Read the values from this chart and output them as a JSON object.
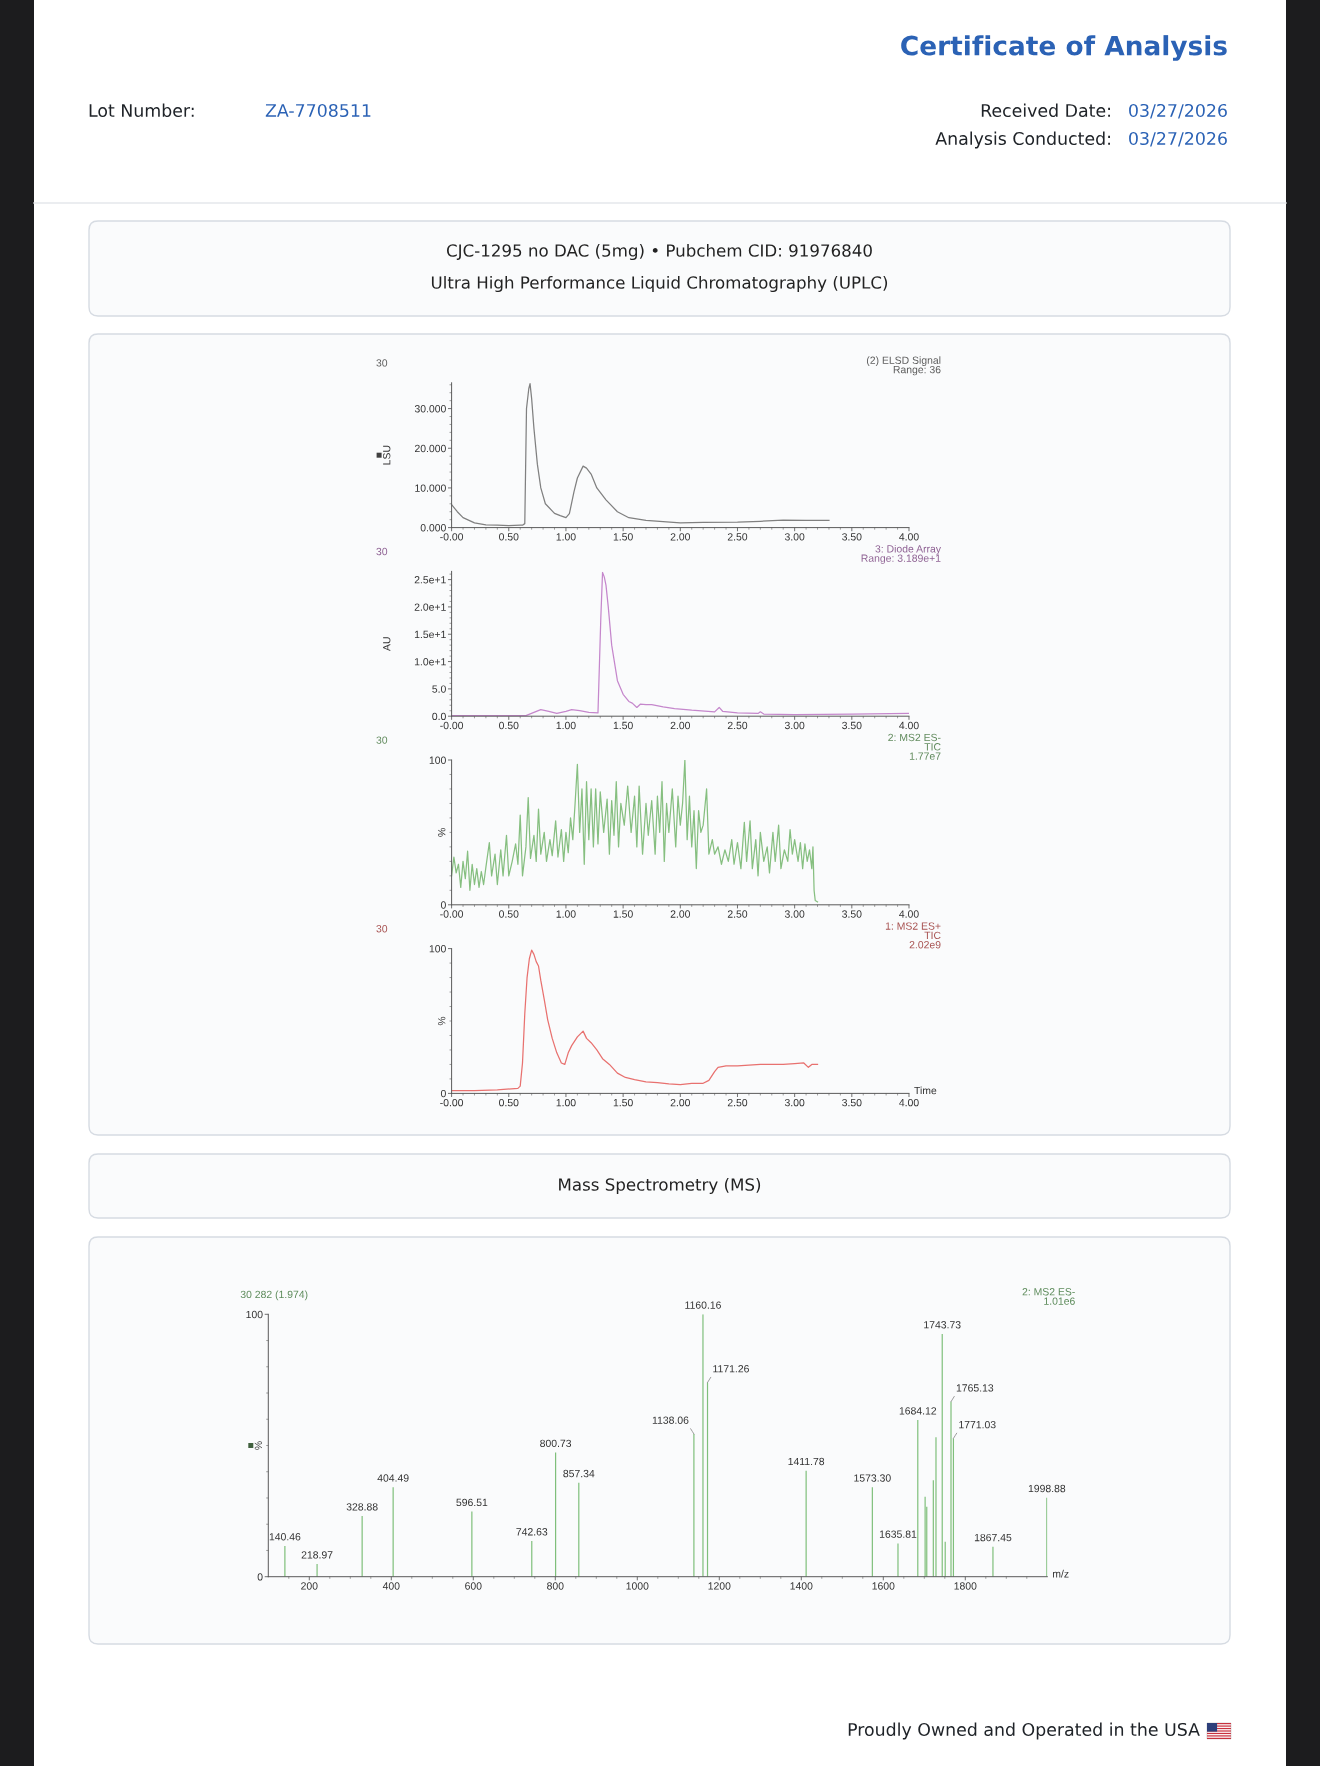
{
  "chart_data": [
    {
      "type": "other",
      "title": "Certificate of Analysis",
      "annotations": [
        "Lot Number:",
        "ZA-7708511",
        "Received Date:",
        "03/27/2026",
        "Analysis Conducted:",
        "03/27/2026",
        "Proudly Owned and Operated in the USA"
      ]
    },
    {
      "type": "line",
      "title": "CJC-1295 no DAC (5mg) • Pubchem CID: 91976840",
      "subtitle": "Ultra High Performance Liquid Chromatography (UPLC)",
      "ylabel": "LSU",
      "annotations": [
        "30",
        "(2) ELSD Signal\nRange: 36"
      ],
      "color": "#808080",
      "x": [
        0,
        0.05,
        0.1,
        0.2,
        0.3,
        0.4,
        0.5,
        0.6,
        0.62,
        0.64,
        0.655,
        0.675,
        0.686,
        0.7,
        0.72,
        0.75,
        0.78,
        0.82,
        0.9,
        0.95,
        1,
        1.03,
        1.07,
        1.1,
        1.15,
        1.18,
        1.22,
        1.27,
        1.35,
        1.45,
        1.55,
        1.7,
        1.85,
        2,
        2.2,
        2.5,
        2.7,
        2.9,
        3.1,
        3.3
      ],
      "values": [
        5.8,
        4,
        2.5,
        1.2,
        0.7,
        0.6,
        0.5,
        0.6,
        0.6,
        1,
        30,
        35,
        36.3,
        32.5,
        25,
        16,
        10,
        6,
        3.6,
        3,
        2.5,
        3.5,
        9,
        12.5,
        15.5,
        15,
        13.5,
        10,
        7,
        4,
        2.5,
        1.8,
        1.5,
        1.2,
        1.3,
        1.4,
        1.6,
        1.9,
        1.8,
        1.8
      ],
      "xlim": [
        0,
        4
      ],
      "ylim": [
        0,
        36.5
      ],
      "xticks": [
        {
          "value": 0,
          "label": "-0.00"
        },
        {
          "value": 0.1,
          "label": null
        },
        {
          "value": 0.2,
          "label": null
        },
        {
          "value": 0.3,
          "label": null
        },
        {
          "value": 0.4,
          "label": null
        },
        {
          "value": 0.5,
          "label": "0.50"
        },
        {
          "value": 0.6,
          "label": null
        },
        {
          "value": 0.7,
          "label": null
        },
        {
          "value": 0.8,
          "label": null
        },
        {
          "value": 0.9,
          "label": null
        },
        {
          "value": 1,
          "label": "1.00"
        },
        {
          "value": 1.1,
          "label": null
        },
        {
          "value": 1.2,
          "label": null
        },
        {
          "value": 1.3,
          "label": null
        },
        {
          "value": 1.4,
          "label": null
        },
        {
          "value": 1.5,
          "label": "1.50"
        },
        {
          "value": 1.6,
          "label": null
        },
        {
          "value": 1.7,
          "label": null
        },
        {
          "value": 1.8,
          "label": null
        },
        {
          "value": 1.9,
          "label": null
        },
        {
          "value": 2,
          "label": "2.00"
        },
        {
          "value": 2.1,
          "label": null
        },
        {
          "value": 2.2,
          "label": null
        },
        {
          "value": 2.3,
          "label": null
        },
        {
          "value": 2.4,
          "label": null
        },
        {
          "value": 2.5,
          "label": "2.50"
        },
        {
          "value": 2.6,
          "label": null
        },
        {
          "value": 2.7,
          "label": null
        },
        {
          "value": 2.8,
          "label": null
        },
        {
          "value": 2.9,
          "label": null
        },
        {
          "value": 3,
          "label": "3.00"
        },
        {
          "value": 3.1,
          "label": null
        },
        {
          "value": 3.2,
          "label": null
        },
        {
          "value": 3.3,
          "label": null
        },
        {
          "value": 3.4,
          "label": null
        },
        {
          "value": 3.5,
          "label": "3.50"
        },
        {
          "value": 3.6,
          "label": null
        },
        {
          "value": 3.7,
          "label": null
        },
        {
          "value": 3.8,
          "label": null
        },
        {
          "value": 3.9,
          "label": null
        },
        {
          "value": 4,
          "label": "4.00"
        }
      ],
      "yticks": [
        {
          "value": 0,
          "label": "0.000"
        },
        {
          "value": 2,
          "label": null
        },
        {
          "value": 4,
          "label": null
        },
        {
          "value": 6,
          "label": null
        },
        {
          "value": 8,
          "label": null
        },
        {
          "value": 10,
          "label": "10.000"
        },
        {
          "value": 12,
          "label": null
        },
        {
          "value": 14,
          "label": null
        },
        {
          "value": 16,
          "label": null
        },
        {
          "value": 18,
          "label": null
        },
        {
          "value": 20,
          "label": "20.000"
        },
        {
          "value": 22,
          "label": null
        },
        {
          "value": 24,
          "label": null
        },
        {
          "value": 26,
          "label": null
        },
        {
          "value": 28,
          "label": null
        },
        {
          "value": 30,
          "label": "30.000"
        },
        {
          "value": 32,
          "label": null
        },
        {
          "value": 34,
          "label": null
        },
        {
          "value": 36,
          "label": null
        }
      ]
    },
    {
      "type": "line",
      "ylabel": "AU",
      "annotations": [
        "30",
        "3: Diode Array\nRange: 3.189e+1"
      ],
      "color": "#c587cc",
      "x": [
        0,
        0.5,
        0.65,
        0.72,
        0.78,
        0.85,
        0.92,
        1,
        1.05,
        1.12,
        1.2,
        1.28,
        1.305,
        1.32,
        1.335,
        1.35,
        1.37,
        1.4,
        1.45,
        1.5,
        1.55,
        1.58,
        1.62,
        1.65,
        1.7,
        1.75,
        1.85,
        1.95,
        2.1,
        2.3,
        2.34,
        2.37,
        2.5,
        2.68,
        2.7,
        2.73,
        3,
        3.5,
        4
      ],
      "values": [
        0.1,
        0.1,
        0.1,
        0.7,
        1.2,
        0.9,
        0.5,
        0.9,
        1.2,
        1,
        0.7,
        0.6,
        18,
        26.3,
        25.5,
        24,
        20,
        13,
        6.5,
        4,
        2.7,
        2.4,
        1.6,
        2.2,
        2.1,
        2.1,
        1.7,
        1.4,
        1.1,
        0.8,
        1.6,
        0.9,
        0.6,
        0.5,
        0.8,
        0.4,
        0.3,
        0.4,
        0.5
      ],
      "xlim": [
        0,
        4
      ],
      "ylim": [
        0,
        26.5
      ],
      "xticks": [
        {
          "value": 0,
          "label": "-0.00"
        },
        {
          "value": 0.1,
          "label": null
        },
        {
          "value": 0.2,
          "label": null
        },
        {
          "value": 0.3,
          "label": null
        },
        {
          "value": 0.4,
          "label": null
        },
        {
          "value": 0.5,
          "label": "0.50"
        },
        {
          "value": 0.6,
          "label": null
        },
        {
          "value": 0.7,
          "label": null
        },
        {
          "value": 0.8,
          "label": null
        },
        {
          "value": 0.9,
          "label": null
        },
        {
          "value": 1,
          "label": "1.00"
        },
        {
          "value": 1.1,
          "label": null
        },
        {
          "value": 1.2,
          "label": null
        },
        {
          "value": 1.3,
          "label": null
        },
        {
          "value": 1.4,
          "label": null
        },
        {
          "value": 1.5,
          "label": "1.50"
        },
        {
          "value": 1.6,
          "label": null
        },
        {
          "value": 1.7,
          "label": null
        },
        {
          "value": 1.8,
          "label": null
        },
        {
          "value": 1.9,
          "label": null
        },
        {
          "value": 2,
          "label": "2.00"
        },
        {
          "value": 2.1,
          "label": null
        },
        {
          "value": 2.2,
          "label": null
        },
        {
          "value": 2.3,
          "label": null
        },
        {
          "value": 2.4,
          "label": null
        },
        {
          "value": 2.5,
          "label": "2.50"
        },
        {
          "value": 2.6,
          "label": null
        },
        {
          "value": 2.7,
          "label": null
        },
        {
          "value": 2.8,
          "label": null
        },
        {
          "value": 2.9,
          "label": null
        },
        {
          "value": 3,
          "label": "3.00"
        },
        {
          "value": 3.1,
          "label": null
        },
        {
          "value": 3.2,
          "label": null
        },
        {
          "value": 3.3,
          "label": null
        },
        {
          "value": 3.4,
          "label": null
        },
        {
          "value": 3.5,
          "label": "3.50"
        },
        {
          "value": 3.6,
          "label": null
        },
        {
          "value": 3.7,
          "label": null
        },
        {
          "value": 3.8,
          "label": null
        },
        {
          "value": 3.9,
          "label": null
        },
        {
          "value": 4,
          "label": "4.00"
        }
      ],
      "yticks": [
        {
          "value": 0,
          "label": "0.0"
        },
        {
          "value": 1,
          "label": null
        },
        {
          "value": 2,
          "label": null
        },
        {
          "value": 3,
          "label": null
        },
        {
          "value": 4,
          "label": null
        },
        {
          "value": 5,
          "label": "5.0"
        },
        {
          "value": 6,
          "label": null
        },
        {
          "value": 7,
          "label": null
        },
        {
          "value": 8,
          "label": null
        },
        {
          "value": 9,
          "label": null
        },
        {
          "value": 10,
          "label": "1.0e+1"
        },
        {
          "value": 11,
          "label": null
        },
        {
          "value": 12,
          "label": null
        },
        {
          "value": 13,
          "label": null
        },
        {
          "value": 14,
          "label": null
        },
        {
          "value": 15,
          "label": "1.5e+1"
        },
        {
          "value": 16,
          "label": null
        },
        {
          "value": 17,
          "label": null
        },
        {
          "value": 18,
          "label": null
        },
        {
          "value": 19,
          "label": null
        },
        {
          "value": 20,
          "label": "2.0e+1"
        },
        {
          "value": 21,
          "label": null
        },
        {
          "value": 22,
          "label": null
        },
        {
          "value": 23,
          "label": null
        },
        {
          "value": 24,
          "label": null
        },
        {
          "value": 25,
          "label": "2.5e+1"
        },
        {
          "value": 26,
          "label": null
        }
      ]
    },
    {
      "type": "line",
      "ylabel": "%",
      "annotations": [
        "30",
        "2: MS2 ES-\nTIC\n1.77e7"
      ],
      "color": "#86bf80",
      "x": [
        0,
        0.02,
        0.04,
        0.06,
        0.08,
        0.1,
        0.12,
        0.14,
        0.16,
        0.18,
        0.2,
        0.22,
        0.24,
        0.26,
        0.28,
        0.3,
        0.33,
        0.35,
        0.38,
        0.4,
        0.43,
        0.45,
        0.48,
        0.5,
        0.53,
        0.56,
        0.58,
        0.6,
        0.62,
        0.65,
        0.67,
        0.69,
        0.72,
        0.74,
        0.76,
        0.78,
        0.81,
        0.83,
        0.86,
        0.88,
        0.91,
        0.93,
        0.96,
        0.98,
        1,
        1.02,
        1.04,
        1.06,
        1.08,
        1.1,
        1.12,
        1.14,
        1.16,
        1.18,
        1.2,
        1.22,
        1.24,
        1.26,
        1.28,
        1.3,
        1.33,
        1.36,
        1.38,
        1.4,
        1.42,
        1.44,
        1.46,
        1.48,
        1.51,
        1.54,
        1.57,
        1.6,
        1.62,
        1.64,
        1.67,
        1.7,
        1.72,
        1.75,
        1.78,
        1.8,
        1.82,
        1.84,
        1.86,
        1.88,
        1.9,
        1.93,
        1.96,
        1.98,
        2,
        2.02,
        2.04,
        2.06,
        2.08,
        2.1,
        2.12,
        2.14,
        2.16,
        2.18,
        2.2,
        2.23,
        2.25,
        2.28,
        2.3,
        2.33,
        2.36,
        2.39,
        2.42,
        2.45,
        2.47,
        2.5,
        2.53,
        2.56,
        2.58,
        2.61,
        2.63,
        2.66,
        2.68,
        2.7,
        2.73,
        2.76,
        2.78,
        2.81,
        2.83,
        2.86,
        2.88,
        2.91,
        2.94,
        2.96,
        2.98,
        3,
        3.03,
        3.05,
        3.07,
        3.09,
        3.11,
        3.13,
        3.15,
        3.16,
        3.17,
        3.18,
        3.2
      ],
      "values": [
        20,
        33,
        22,
        28,
        12,
        30,
        18,
        37,
        10,
        28,
        14,
        25,
        12,
        23,
        14,
        26,
        43,
        20,
        35,
        14,
        38,
        20,
        48,
        20,
        30,
        42,
        28,
        62,
        20,
        40,
        74,
        32,
        48,
        30,
        66,
        35,
        50,
        30,
        45,
        34,
        58,
        33,
        52,
        30,
        50,
        36,
        60,
        45,
        70,
        97,
        50,
        80,
        28,
        85,
        45,
        80,
        40,
        80,
        42,
        78,
        50,
        73,
        35,
        72,
        48,
        85,
        40,
        70,
        55,
        82,
        50,
        75,
        40,
        82,
        35,
        70,
        48,
        72,
        35,
        75,
        50,
        85,
        30,
        70,
        50,
        80,
        40,
        75,
        55,
        70,
        100,
        45,
        75,
        40,
        65,
        25,
        65,
        50,
        55,
        80,
        35,
        45,
        35,
        40,
        28,
        38,
        30,
        45,
        28,
        43,
        25,
        57,
        30,
        58,
        25,
        45,
        20,
        50,
        30,
        40,
        22,
        50,
        30,
        55,
        25,
        38,
        30,
        52,
        35,
        45,
        30,
        43,
        25,
        42,
        30,
        38,
        25,
        40,
        10,
        3,
        2
      ],
      "xlim": [
        0,
        4
      ],
      "ylim": [
        0,
        100
      ],
      "xticks": [
        {
          "value": 0,
          "label": "-0.00"
        },
        {
          "value": 0.1,
          "label": null
        },
        {
          "value": 0.2,
          "label": null
        },
        {
          "value": 0.3,
          "label": null
        },
        {
          "value": 0.4,
          "label": null
        },
        {
          "value": 0.5,
          "label": "0.50"
        },
        {
          "value": 0.6,
          "label": null
        },
        {
          "value": 0.7,
          "label": null
        },
        {
          "value": 0.8,
          "label": null
        },
        {
          "value": 0.9,
          "label": null
        },
        {
          "value": 1,
          "label": "1.00"
        },
        {
          "value": 1.1,
          "label": null
        },
        {
          "value": 1.2,
          "label": null
        },
        {
          "value": 1.3,
          "label": null
        },
        {
          "value": 1.4,
          "label": null
        },
        {
          "value": 1.5,
          "label": "1.50"
        },
        {
          "value": 1.6,
          "label": null
        },
        {
          "value": 1.7,
          "label": null
        },
        {
          "value": 1.8,
          "label": null
        },
        {
          "value": 1.9,
          "label": null
        },
        {
          "value": 2,
          "label": "2.00"
        },
        {
          "value": 2.1,
          "label": null
        },
        {
          "value": 2.2,
          "label": null
        },
        {
          "value": 2.3,
          "label": null
        },
        {
          "value": 2.4,
          "label": null
        },
        {
          "value": 2.5,
          "label": "2.50"
        },
        {
          "value": 2.6,
          "label": null
        },
        {
          "value": 2.7,
          "label": null
        },
        {
          "value": 2.8,
          "label": null
        },
        {
          "value": 2.9,
          "label": null
        },
        {
          "value": 3,
          "label": "3.00"
        },
        {
          "value": 3.1,
          "label": null
        },
        {
          "value": 3.2,
          "label": null
        },
        {
          "value": 3.3,
          "label": null
        },
        {
          "value": 3.4,
          "label": null
        },
        {
          "value": 3.5,
          "label": "3.50"
        },
        {
          "value": 3.6,
          "label": null
        },
        {
          "value": 3.7,
          "label": null
        },
        {
          "value": 3.8,
          "label": null
        },
        {
          "value": 3.9,
          "label": null
        },
        {
          "value": 4,
          "label": "4.00"
        }
      ],
      "yticks": [
        0,
        {
          "value": 10,
          "label": null
        },
        {
          "value": 20,
          "label": null
        },
        {
          "value": 30,
          "label": null
        },
        {
          "value": 40,
          "label": null
        },
        {
          "value": 50,
          "label": null
        },
        {
          "value": 60,
          "label": null
        },
        {
          "value": 70,
          "label": null
        },
        {
          "value": 80,
          "label": null
        },
        {
          "value": 90,
          "label": null
        },
        100
      ]
    },
    {
      "type": "line",
      "ylabel": "%",
      "xlabel": "Time",
      "annotations": [
        "30",
        "1: MS2 ES+\nTIC\n2.02e9"
      ],
      "color": "#e8716f",
      "x": [
        0,
        0.2,
        0.4,
        0.58,
        0.6,
        0.62,
        0.64,
        0.66,
        0.68,
        0.7,
        0.72,
        0.74,
        0.76,
        0.78,
        0.81,
        0.84,
        0.88,
        0.92,
        0.96,
        0.99,
        1.02,
        1.05,
        1.1,
        1.15,
        1.18,
        1.22,
        1.27,
        1.32,
        1.38,
        1.45,
        1.52,
        1.6,
        1.7,
        1.8,
        1.9,
        2,
        2.1,
        2.2,
        2.25,
        2.3,
        2.33,
        2.4,
        2.5,
        2.6,
        2.7,
        2.8,
        2.9,
        3,
        3.08,
        3.12,
        3.15,
        3.2
      ],
      "values": [
        2,
        2,
        2.5,
        3.5,
        5,
        21,
        55,
        80,
        93,
        99,
        96,
        91,
        88,
        78,
        65,
        51,
        38,
        28,
        21,
        20,
        28,
        33,
        39,
        43,
        38,
        35,
        30,
        24,
        20,
        14,
        11,
        9.5,
        8,
        7.5,
        6.5,
        6,
        7,
        7,
        9,
        15,
        18,
        19,
        19,
        19.5,
        20,
        20,
        20,
        20.5,
        21,
        18,
        20,
        20
      ],
      "xlim": [
        0,
        4
      ],
      "ylim": [
        0,
        100
      ],
      "xticks": [
        {
          "value": 0,
          "label": "-0.00"
        },
        {
          "value": 0.1,
          "label": null
        },
        {
          "value": 0.2,
          "label": null
        },
        {
          "value": 0.3,
          "label": null
        },
        {
          "value": 0.4,
          "label": null
        },
        {
          "value": 0.5,
          "label": "0.50"
        },
        {
          "value": 0.6,
          "label": null
        },
        {
          "value": 0.7,
          "label": null
        },
        {
          "value": 0.8,
          "label": null
        },
        {
          "value": 0.9,
          "label": null
        },
        {
          "value": 1,
          "label": "1.00"
        },
        {
          "value": 1.1,
          "label": null
        },
        {
          "value": 1.2,
          "label": null
        },
        {
          "value": 1.3,
          "label": null
        },
        {
          "value": 1.4,
          "label": null
        },
        {
          "value": 1.5,
          "label": "1.50"
        },
        {
          "value": 1.6,
          "label": null
        },
        {
          "value": 1.7,
          "label": null
        },
        {
          "value": 1.8,
          "label": null
        },
        {
          "value": 1.9,
          "label": null
        },
        {
          "value": 2,
          "label": "2.00"
        },
        {
          "value": 2.1,
          "label": null
        },
        {
          "value": 2.2,
          "label": null
        },
        {
          "value": 2.3,
          "label": null
        },
        {
          "value": 2.4,
          "label": null
        },
        {
          "value": 2.5,
          "label": "2.50"
        },
        {
          "value": 2.6,
          "label": null
        },
        {
          "value": 2.7,
          "label": null
        },
        {
          "value": 2.8,
          "label": null
        },
        {
          "value": 2.9,
          "label": null
        },
        {
          "value": 3,
          "label": "3.00"
        },
        {
          "value": 3.1,
          "label": null
        },
        {
          "value": 3.2,
          "label": null
        },
        {
          "value": 3.3,
          "label": null
        },
        {
          "value": 3.4,
          "label": null
        },
        {
          "value": 3.5,
          "label": "3.50"
        },
        {
          "value": 3.6,
          "label": null
        },
        {
          "value": 3.7,
          "label": null
        },
        {
          "value": 3.8,
          "label": null
        },
        {
          "value": 3.9,
          "label": null
        },
        {
          "value": 4,
          "label": "4.00"
        }
      ],
      "yticks": [
        0,
        {
          "value": 10,
          "label": null
        },
        {
          "value": 20,
          "label": null
        },
        {
          "value": 30,
          "label": null
        },
        {
          "value": 40,
          "label": null
        },
        {
          "value": 50,
          "label": null
        },
        {
          "value": 60,
          "label": null
        },
        {
          "value": 70,
          "label": null
        },
        {
          "value": 80,
          "label": null
        },
        {
          "value": 90,
          "label": null
        },
        100
      ]
    },
    {
      "type": "bar",
      "title": "Mass Spectrometry (MS)",
      "ylabel": "%",
      "xlabel": "m/z",
      "color": "#7fbf7b",
      "annotations": [
        "30 282 (1.974)",
        "2: MS2 ES-\n1.01e6",
        {
          "text": "140.46",
          "x": 140.46,
          "y": 11.7
        },
        {
          "text": "218.97",
          "x": 218.97,
          "y": 4.8
        },
        {
          "text": "328.88",
          "x": 328.88,
          "y": 23.1
        },
        {
          "text": "404.49",
          "x": 404.49,
          "y": 34.1
        },
        {
          "text": "596.51",
          "x": 596.51,
          "y": 24.8
        },
        {
          "text": "742.63",
          "x": 742.63,
          "y": 13.6
        },
        {
          "text": "800.73",
          "x": 800.73,
          "y": 47.3
        },
        {
          "text": "857.34",
          "x": 857.34,
          "y": 35.8
        },
        {
          "text": "1138.06",
          "x": 1138.06,
          "y": 54.4
        },
        {
          "text": "1160.16",
          "x": 1160.16,
          "y": 100
        },
        {
          "text": "1171.26",
          "x": 1171.26,
          "y": 74
        },
        {
          "text": "1411.78",
          "x": 1411.78,
          "y": 40.4
        },
        {
          "text": "1573.30",
          "x": 1573.3,
          "y": 34.1
        },
        {
          "text": "1635.81",
          "x": 1635.81,
          "y": 12.7
        },
        {
          "text": "1684.12",
          "x": 1684.12,
          "y": 59.7
        },
        {
          "text": "1743.73",
          "x": 1743.73,
          "y": 92.5
        },
        {
          "text": "1765.13",
          "x": 1765.13,
          "y": 66.7
        },
        {
          "text": "1771.03",
          "x": 1771.03,
          "y": 52.7
        },
        {
          "text": "1867.45",
          "x": 1867.45,
          "y": 11.4
        },
        {
          "text": "1998.88",
          "x": 1998.88,
          "y": 30.1
        }
      ],
      "x": [
        140.46,
        218.97,
        328.88,
        404.49,
        596.51,
        742.63,
        800.73,
        857.34,
        1138.06,
        1160.16,
        1171.26,
        1411.78,
        1573.3,
        1635.81,
        1684.12,
        1702,
        1706,
        1722,
        1728.5,
        1743.73,
        1751,
        1765.13,
        1771.03,
        1867.45,
        1998.88
      ],
      "values": [
        11.7,
        4.8,
        23.1,
        34.1,
        24.8,
        13.6,
        47.3,
        35.8,
        54.4,
        100,
        74,
        40.4,
        34.1,
        12.7,
        59.7,
        30.5,
        26.7,
        36.8,
        53.1,
        92.5,
        13.3,
        66.7,
        52.7,
        11.4,
        30.1
      ],
      "xlim": [
        100,
        2000
      ],
      "ylim": [
        0,
        100
      ],
      "xticks": [
        {
          "value": 150,
          "label": null
        },
        200,
        {
          "value": 250,
          "label": null
        },
        {
          "value": 300,
          "label": null
        },
        {
          "value": 350,
          "label": null
        },
        400,
        {
          "value": 450,
          "label": null
        },
        {
          "value": 500,
          "label": null
        },
        {
          "value": 550,
          "label": null
        },
        600,
        {
          "value": 650,
          "label": null
        },
        {
          "value": 700,
          "label": null
        },
        {
          "value": 750,
          "label": null
        },
        800,
        {
          "value": 850,
          "label": null
        },
        {
          "value": 900,
          "label": null
        },
        {
          "value": 950,
          "label": null
        },
        1000,
        {
          "value": 1050,
          "label": null
        },
        {
          "value": 1100,
          "label": null
        },
        {
          "value": 1150,
          "label": null
        },
        1200,
        {
          "value": 1250,
          "label": null
        },
        {
          "value": 1300,
          "label": null
        },
        {
          "value": 1350,
          "label": null
        },
        1400,
        {
          "value": 1450,
          "label": null
        },
        {
          "value": 1500,
          "label": null
        },
        {
          "value": 1550,
          "label": null
        },
        1600,
        {
          "value": 1650,
          "label": null
        },
        {
          "value": 1700,
          "label": null
        },
        {
          "value": 1750,
          "label": null
        },
        1800,
        {
          "value": 1850,
          "label": null
        },
        {
          "value": 1900,
          "label": null
        },
        {
          "value": 1950,
          "label": null
        }
      ],
      "yticks": [
        0,
        {
          "value": 10,
          "label": null
        },
        {
          "value": 20,
          "label": null
        },
        {
          "value": 30,
          "label": null
        },
        {
          "value": 40,
          "label": null
        },
        {
          "value": 50,
          "label": null
        },
        {
          "value": 60,
          "label": null
        },
        {
          "value": 70,
          "label": null
        },
        {
          "value": 80,
          "label": null
        },
        {
          "value": 90,
          "label": null
        },
        100
      ]
    }
  ]
}
